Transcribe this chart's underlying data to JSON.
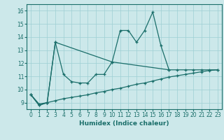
{
  "xlabel": "Humidex (Indice chaleur)",
  "xlim": [
    -0.5,
    23.5
  ],
  "ylim": [
    8.5,
    16.5
  ],
  "xticks": [
    0,
    1,
    2,
    3,
    4,
    5,
    6,
    7,
    8,
    9,
    10,
    11,
    12,
    13,
    14,
    15,
    16,
    17,
    18,
    19,
    20,
    21,
    22,
    23
  ],
  "yticks": [
    9,
    10,
    11,
    12,
    13,
    14,
    15,
    16
  ],
  "bg_color": "#cce8ea",
  "line_color": "#1a6e6a",
  "series": [
    {
      "x": [
        0,
        1,
        2,
        3,
        4,
        5,
        6,
        7,
        8,
        9,
        10,
        11,
        12,
        13,
        14,
        15,
        16,
        17
      ],
      "y": [
        9.6,
        8.8,
        9.0,
        13.6,
        11.15,
        10.6,
        10.5,
        10.5,
        11.15,
        11.15,
        12.1,
        14.5,
        14.5,
        13.6,
        14.5,
        15.9,
        13.35,
        11.5
      ]
    },
    {
      "x": [
        0,
        1,
        2,
        3,
        10,
        17,
        18,
        19,
        20,
        21,
        22,
        23
      ],
      "y": [
        9.6,
        8.8,
        9.0,
        13.6,
        12.1,
        11.5,
        11.5,
        11.5,
        11.5,
        11.5,
        11.5,
        11.5
      ]
    },
    {
      "x": [
        0,
        1,
        2,
        3,
        4,
        5,
        6,
        7,
        8,
        9,
        10,
        11,
        12,
        13,
        14,
        15,
        16,
        17,
        18,
        19,
        20,
        21,
        22,
        23
      ],
      "y": [
        9.6,
        8.9,
        9.0,
        9.15,
        9.3,
        9.4,
        9.5,
        9.6,
        9.75,
        9.85,
        10.0,
        10.1,
        10.25,
        10.4,
        10.5,
        10.65,
        10.8,
        10.95,
        11.05,
        11.15,
        11.25,
        11.35,
        11.45,
        11.5
      ]
    }
  ]
}
